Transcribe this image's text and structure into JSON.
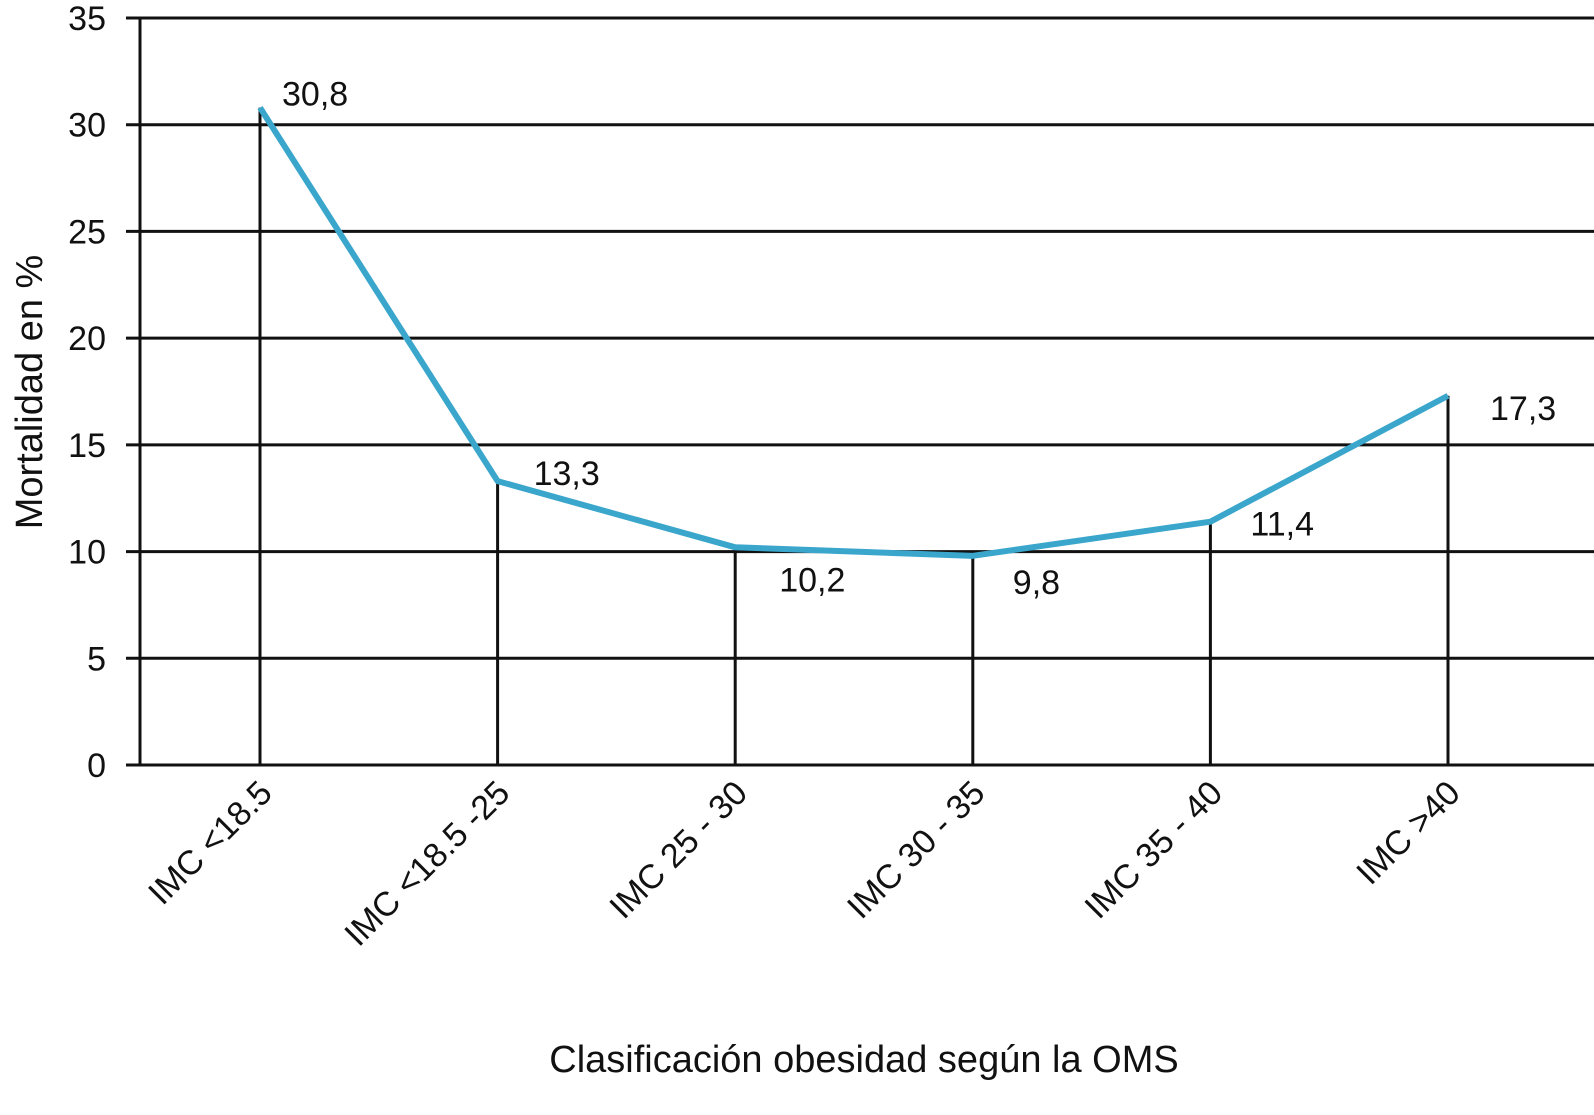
{
  "chart_data": {
    "type": "line",
    "title": "",
    "xlabel": "Clasificación obesidad según la OMS",
    "ylabel": "Mortalidad en %",
    "categories": [
      "IMC <18.5",
      "IMC <18.5 -25",
      "IMC 25 - 30",
      "IMC 30 - 35",
      "IMC 35 - 40",
      "IMC >40"
    ],
    "values": [
      30.8,
      13.3,
      10.2,
      9.8,
      11.4,
      17.3
    ],
    "data_labels": [
      "30,8",
      "13,3",
      "10,2",
      "9,8",
      "11,4",
      "17,3"
    ],
    "ylim": [
      0,
      35
    ],
    "yticks": [
      "0",
      "5",
      "10",
      "15",
      "20",
      "25",
      "30",
      "35"
    ],
    "grid": true,
    "drop_lines": true,
    "colors": {
      "line": "#3aa6cc",
      "grid": "#111111"
    }
  }
}
